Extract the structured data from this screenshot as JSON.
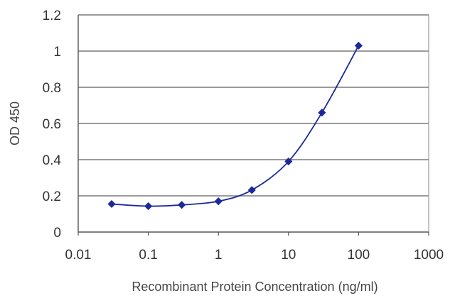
{
  "chart_data": {
    "type": "scatter",
    "title": "",
    "xlabel": "Recombinant Protein Concentration (ng/ml)",
    "ylabel": "OD 450",
    "x_scale": "log",
    "xlim": [
      0.01,
      1000
    ],
    "ylim": [
      0,
      1.2
    ],
    "x_ticks": [
      "0.01",
      "0.1",
      "1",
      "10",
      "100",
      "1000"
    ],
    "y_ticks": [
      "0",
      "0.2",
      "0.4",
      "0.6",
      "0.8",
      "1",
      "1.2"
    ],
    "grid": "horizontal",
    "legend": "none",
    "series": [
      {
        "x": [
          0.03,
          0.1,
          0.3,
          1,
          3,
          10,
          30,
          100
        ],
        "y": [
          0.155,
          0.143,
          0.15,
          0.17,
          0.232,
          0.39,
          0.66,
          1.03
        ],
        "marker": "diamond",
        "line": "smooth",
        "color": "#1a2a9a"
      }
    ]
  }
}
